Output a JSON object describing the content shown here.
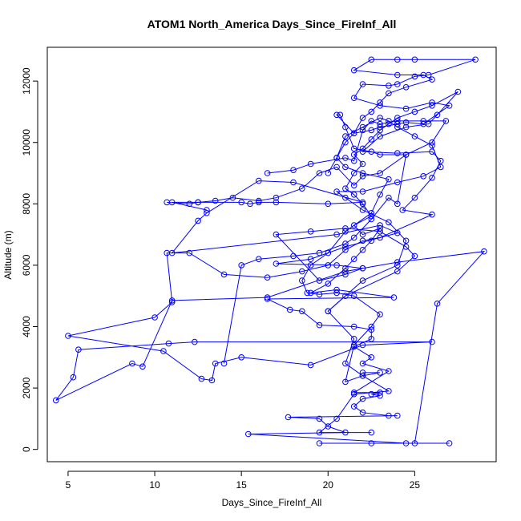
{
  "chart_data": {
    "type": "line",
    "title": "ATOM1 North_America Days_Since_FireInf_All",
    "xlabel": "Days_Since_FireInf_All",
    "ylabel": "Altitude (m)",
    "xlim": [
      3.8,
      29.7
    ],
    "ylim": [
      -400,
      13100
    ],
    "xticks": [
      5,
      10,
      15,
      20,
      25
    ],
    "yticks": [
      0,
      2000,
      4000,
      6000,
      8000,
      10000,
      12000
    ],
    "color": "#0000ff",
    "markers": "open-circle",
    "lines": true,
    "series": [
      {
        "points": [
          [
            27.0,
            200
          ],
          [
            19.5,
            200
          ],
          [
            22.5,
            200
          ],
          [
            24.5,
            200
          ],
          [
            15.4,
            500
          ],
          [
            21.0,
            550
          ],
          [
            20.0,
            750
          ],
          [
            19.5,
            1000
          ],
          [
            17.7,
            1050
          ],
          [
            24.0,
            1100
          ],
          [
            23.5,
            1100
          ],
          [
            22.0,
            1200
          ],
          [
            21.5,
            1400
          ],
          [
            22.0,
            1650
          ],
          [
            23.0,
            1750
          ],
          [
            22.5,
            1800
          ],
          [
            23.0,
            1850
          ],
          [
            21.5,
            1850
          ],
          [
            23.5,
            2550
          ],
          [
            22.0,
            2800
          ],
          [
            22.5,
            3000
          ],
          [
            21.5,
            3350
          ],
          [
            22.5,
            3600
          ],
          [
            22.5,
            3900
          ],
          [
            21.5,
            4000
          ],
          [
            19.5,
            4050
          ],
          [
            18.5,
            4500
          ],
          [
            17.8,
            4550
          ],
          [
            16.5,
            4900
          ],
          [
            23.8,
            4950
          ],
          [
            20.5,
            5200
          ],
          [
            19.0,
            5100
          ],
          [
            20.0,
            5400
          ],
          [
            21.0,
            5900
          ],
          [
            21.5,
            6200
          ],
          [
            22.0,
            6500
          ],
          [
            22.5,
            6800
          ],
          [
            23.0,
            7200
          ],
          [
            22.0,
            7000
          ],
          [
            21.5,
            7300
          ],
          [
            22.5,
            7600
          ],
          [
            22.0,
            8000
          ],
          [
            21.5,
            8300
          ],
          [
            21.0,
            8500
          ],
          [
            21.5,
            9000
          ],
          [
            22.0,
            9300
          ],
          [
            21.5,
            9600
          ],
          [
            22.0,
            9800
          ],
          [
            22.5,
            10100
          ],
          [
            23.0,
            10400
          ],
          [
            23.5,
            10600
          ],
          [
            24.0,
            10800
          ],
          [
            25.0,
            11000
          ],
          [
            26.0,
            11200
          ],
          [
            27.5,
            11650
          ],
          [
            26.3,
            10900
          ],
          [
            25.8,
            10600
          ],
          [
            24.5,
            10500
          ],
          [
            23.0,
            10200
          ],
          [
            22.0,
            9700
          ],
          [
            24.0,
            9650
          ],
          [
            26.0,
            9700
          ],
          [
            26.5,
            9400
          ],
          [
            26.0,
            8850
          ],
          [
            25.0,
            8200
          ],
          [
            24.3,
            7800
          ],
          [
            26.0,
            7650
          ],
          [
            23.0,
            6900
          ],
          [
            22.0,
            6800
          ],
          [
            21.0,
            6500
          ],
          [
            20.0,
            6000
          ],
          [
            18.5,
            5800
          ],
          [
            16.5,
            5600
          ],
          [
            14.0,
            5700
          ],
          [
            12.0,
            6400
          ],
          [
            10.7,
            6400
          ],
          [
            11.0,
            4800
          ],
          [
            10.0,
            4300
          ],
          [
            5.0,
            3700
          ],
          [
            10.5,
            3200
          ],
          [
            12.7,
            2300
          ],
          [
            13.3,
            2250
          ],
          [
            13.5,
            2800
          ],
          [
            15.0,
            3000
          ],
          [
            19.0,
            2750
          ],
          [
            22.0,
            3400
          ],
          [
            26.0,
            3500
          ],
          [
            12.3,
            3500
          ],
          [
            10.8,
            3450
          ],
          [
            5.6,
            3250
          ],
          [
            5.3,
            2350
          ],
          [
            4.3,
            1600
          ],
          [
            8.7,
            2800
          ],
          [
            9.3,
            2700
          ],
          [
            11.0,
            4850
          ],
          [
            16.5,
            4950
          ],
          [
            21.0,
            5800
          ],
          [
            22.0,
            5900
          ],
          [
            24.0,
            6100
          ],
          [
            29.0,
            6450
          ],
          [
            26.3,
            4750
          ],
          [
            25.0,
            200
          ]
        ]
      },
      {
        "points": [
          [
            10.7,
            8050
          ],
          [
            12.0,
            8000
          ],
          [
            12.5,
            8050
          ],
          [
            15.0,
            8050
          ],
          [
            15.5,
            8000
          ],
          [
            16.0,
            8050
          ],
          [
            17.0,
            8050
          ],
          [
            20.0,
            8000
          ],
          [
            22.0,
            8050
          ],
          [
            18.0,
            8700
          ],
          [
            16.0,
            8750
          ],
          [
            13.0,
            7700
          ],
          [
            12.5,
            7450
          ],
          [
            11.0,
            6400
          ],
          [
            20.5,
            7000
          ],
          [
            23.0,
            7300
          ],
          [
            24.0,
            7050
          ],
          [
            21.0,
            6600
          ],
          [
            19.0,
            6200
          ],
          [
            17.0,
            6050
          ],
          [
            20.5,
            6000
          ],
          [
            22.0,
            5900
          ],
          [
            21.0,
            5700
          ],
          [
            19.5,
            5500
          ],
          [
            17.0,
            7000
          ],
          [
            19.0,
            7100
          ],
          [
            21.0,
            7200
          ],
          [
            23.0,
            7100
          ],
          [
            24.5,
            6600
          ],
          [
            25.0,
            6300
          ],
          [
            24.0,
            5800
          ],
          [
            21.0,
            5000
          ],
          [
            20.0,
            4500
          ],
          [
            21.5,
            3600
          ],
          [
            21.0,
            2800
          ],
          [
            22.0,
            2400
          ],
          [
            23.5,
            1900
          ],
          [
            21.5,
            1800
          ],
          [
            20.5,
            1000
          ],
          [
            19.5,
            550
          ],
          [
            22.5,
            550
          ]
        ]
      },
      {
        "points": [
          [
            20.0,
            9000
          ],
          [
            20.5,
            9500
          ],
          [
            21.0,
            10000
          ],
          [
            21.5,
            10300
          ],
          [
            22.0,
            10800
          ],
          [
            22.5,
            11000
          ],
          [
            23.0,
            11300
          ],
          [
            23.5,
            11600
          ],
          [
            24.5,
            11800
          ],
          [
            26.0,
            12050
          ],
          [
            25.5,
            12200
          ],
          [
            24.0,
            12200
          ],
          [
            21.5,
            12350
          ],
          [
            22.5,
            12700
          ],
          [
            24.0,
            12700
          ],
          [
            25.0,
            12700
          ],
          [
            28.5,
            12700
          ],
          [
            25.8,
            12200
          ],
          [
            25.0,
            12150
          ],
          [
            24.0,
            11900
          ],
          [
            23.5,
            11850
          ],
          [
            22.0,
            11900
          ],
          [
            21.5,
            11450
          ],
          [
            23.0,
            11200
          ],
          [
            24.5,
            11100
          ],
          [
            26.0,
            11300
          ],
          [
            27.0,
            11200
          ],
          [
            25.5,
            10600
          ],
          [
            24.5,
            10650
          ],
          [
            24.0,
            10600
          ],
          [
            23.0,
            10500
          ],
          [
            22.5,
            10400
          ],
          [
            21.5,
            10300
          ],
          [
            20.5,
            10900
          ],
          [
            20.7,
            10900
          ],
          [
            21.0,
            10500
          ],
          [
            21.5,
            9800
          ],
          [
            22.5,
            9700
          ],
          [
            23.0,
            9600
          ],
          [
            24.5,
            9600
          ],
          [
            23.0,
            9000
          ],
          [
            22.0,
            8900
          ],
          [
            21.5,
            8600
          ],
          [
            20.5,
            9200
          ],
          [
            19.5,
            9000
          ],
          [
            18.5,
            8500
          ],
          [
            17.0,
            8200
          ],
          [
            16.0,
            8100
          ],
          [
            14.5,
            8200
          ],
          [
            13.5,
            8100
          ],
          [
            12.5,
            8050
          ],
          [
            11.0,
            8050
          ],
          [
            13.0,
            7800
          ]
        ]
      },
      {
        "points": [
          [
            20.0,
            4500
          ],
          [
            22.0,
            5500
          ],
          [
            24.0,
            6000
          ],
          [
            24.5,
            6800
          ],
          [
            23.5,
            7400
          ],
          [
            22.0,
            7800
          ],
          [
            21.0,
            8200
          ],
          [
            20.5,
            8400
          ],
          [
            22.0,
            8400
          ],
          [
            24.0,
            8700
          ],
          [
            25.5,
            8900
          ],
          [
            26.5,
            9200
          ],
          [
            26.0,
            9900
          ],
          [
            25.0,
            10200
          ],
          [
            24.0,
            10500
          ],
          [
            23.5,
            10700
          ],
          [
            23.0,
            10800
          ],
          [
            22.0,
            10500
          ],
          [
            21.0,
            10200
          ],
          [
            20.5,
            9500
          ],
          [
            21.0,
            9200
          ],
          [
            22.0,
            9000
          ],
          [
            23.5,
            8800
          ],
          [
            23.0,
            8300
          ],
          [
            22.5,
            7700
          ],
          [
            21.0,
            7100
          ],
          [
            20.0,
            6400
          ],
          [
            19.0,
            6000
          ],
          [
            18.5,
            5500
          ],
          [
            18.8,
            5100
          ],
          [
            19.5,
            5050
          ],
          [
            20.5,
            5100
          ],
          [
            21.5,
            5000
          ],
          [
            23.0,
            4400
          ],
          [
            22.5,
            4000
          ],
          [
            21.5,
            3400
          ],
          [
            21.0,
            2200
          ],
          [
            22.0,
            2400
          ],
          [
            23.0,
            2500
          ],
          [
            22.0,
            2500
          ]
        ]
      },
      {
        "points": [
          [
            14.0,
            2800
          ],
          [
            15.0,
            6000
          ],
          [
            16.0,
            6200
          ],
          [
            18.0,
            6300
          ],
          [
            19.5,
            6400
          ],
          [
            21.0,
            6700
          ],
          [
            21.5,
            6900
          ],
          [
            22.5,
            7500
          ],
          [
            23.5,
            8200
          ],
          [
            24.0,
            8000
          ],
          [
            24.5,
            9600
          ],
          [
            26.0,
            10000
          ],
          [
            26.8,
            10700
          ],
          [
            25.5,
            10700
          ],
          [
            24.0,
            10700
          ],
          [
            23.0,
            10600
          ],
          [
            22.5,
            10700
          ],
          [
            22.0,
            10400
          ],
          [
            21.5,
            9400
          ],
          [
            21.0,
            9500
          ],
          [
            19.0,
            9300
          ],
          [
            18.0,
            9100
          ],
          [
            16.5,
            9000
          ]
        ]
      }
    ]
  }
}
